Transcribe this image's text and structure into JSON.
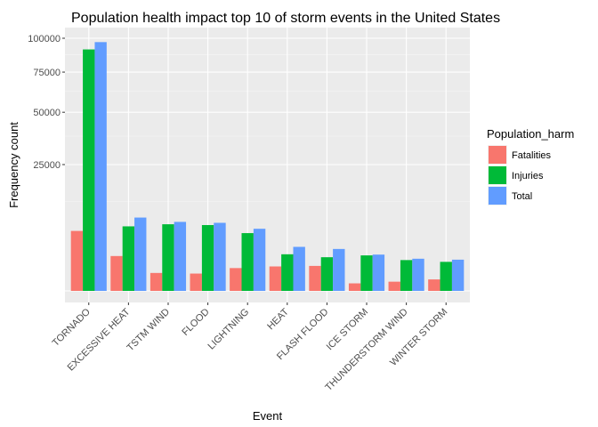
{
  "chart_data": {
    "type": "bar",
    "title": "Population health impact top 10 of storm events in the United States",
    "xlabel": "Event",
    "ylabel": "Frequency count",
    "y_scale": "sqrt",
    "ylim": [
      0,
      100000
    ],
    "yticks": [
      25000,
      50000,
      75000,
      100000
    ],
    "ytick_labels": [
      "25000",
      "50000",
      "75000",
      "100000"
    ],
    "grid": true,
    "legend_title": "Population_harm",
    "legend_position": "right",
    "categories": [
      "TORNADO",
      "EXCESSIVE HEAT",
      "TSTM WIND",
      "FLOOD",
      "LIGHTNING",
      "HEAT",
      "FLASH FLOOD",
      "ICE STORM",
      "THUNDERSTORM WIND",
      "WINTER STORM"
    ],
    "series": [
      {
        "name": "Fatalities",
        "color": "#F8766D",
        "values": [
          5633,
          1903,
          504,
          470,
          816,
          937,
          978,
          89,
          133,
          206
        ]
      },
      {
        "name": "Injuries",
        "color": "#00BA38",
        "values": [
          91346,
          6525,
          6957,
          6789,
          5230,
          2100,
          1777,
          1975,
          1488,
          1321
        ]
      },
      {
        "name": "Total",
        "color": "#619CFF",
        "values": [
          96979,
          8428,
          7461,
          7259,
          6046,
          3037,
          2755,
          2064,
          1621,
          1527
        ]
      }
    ]
  }
}
